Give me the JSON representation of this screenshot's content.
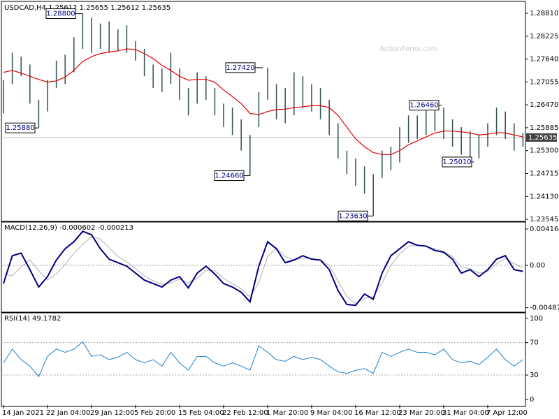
{
  "chart_data": [
    {
      "type": "hilo",
      "title": "USDCAD,H4  1.25612 1.25655 1.25612 1.25635",
      "watermark": "ActionForex.com",
      "categories": [
        "14 Jan 2021",
        null,
        null,
        null,
        null,
        "22 Jan 04:00",
        null,
        null,
        null,
        null,
        "29 Jan 12:00",
        null,
        null,
        null,
        null,
        "5 Feb 20:00",
        null,
        null,
        null,
        null,
        "15 Feb 04:00",
        null,
        null,
        null,
        null,
        "22 Feb 12:00",
        null,
        null,
        null,
        null,
        "1 Mar 20:00",
        null,
        null,
        null,
        null,
        "9 Mar 04:00",
        null,
        null,
        null,
        null,
        "16 Mar 12:00",
        null,
        null,
        null,
        null,
        "23 Mar 20:00",
        null,
        null,
        null,
        null,
        "31 Mar 04:00",
        null,
        null,
        null,
        null,
        "7 Apr 12:00",
        null,
        null,
        null,
        null
      ],
      "color": "#2f4f4f",
      "high": [
        1.271,
        1.278,
        1.277,
        1.275,
        1.266,
        1.271,
        1.276,
        1.2775,
        1.282,
        1.288,
        1.287,
        1.2855,
        1.286,
        1.284,
        1.285,
        1.281,
        1.279,
        1.275,
        1.274,
        1.278,
        1.274,
        1.269,
        1.273,
        1.272,
        1.269,
        1.265,
        1.264,
        1.261,
        1.257,
        1.268,
        1.2742,
        1.27,
        1.269,
        1.273,
        1.272,
        1.27,
        1.269,
        1.266,
        1.26,
        1.253,
        1.251,
        1.249,
        1.247,
        1.253,
        1.254,
        1.259,
        1.262,
        1.262,
        1.264,
        1.2646,
        1.264,
        1.261,
        1.259,
        1.258,
        1.257,
        1.26,
        1.264,
        1.263,
        1.26,
        1.2575
      ],
      "low": [
        1.2625,
        1.27,
        1.272,
        1.265,
        1.2588,
        1.263,
        1.269,
        1.27,
        1.273,
        1.279,
        1.278,
        1.279,
        1.278,
        1.2785,
        1.278,
        1.276,
        1.272,
        1.269,
        1.268,
        1.27,
        1.266,
        1.262,
        1.265,
        1.266,
        1.262,
        1.259,
        1.257,
        1.253,
        1.2466,
        1.259,
        1.266,
        1.261,
        1.26,
        1.262,
        1.264,
        1.263,
        1.261,
        1.257,
        1.251,
        1.247,
        1.244,
        1.242,
        1.2363,
        1.246,
        1.248,
        1.25,
        1.255,
        1.256,
        1.257,
        1.258,
        1.256,
        1.254,
        1.252,
        1.2501,
        1.251,
        1.254,
        1.257,
        1.256,
        1.253,
        1.254
      ],
      "ma": {
        "color": "#e00000",
        "values": [
          1.273,
          1.2735,
          1.2728,
          1.272,
          1.2712,
          1.2705,
          1.2708,
          1.2718,
          1.2735,
          1.2758,
          1.277,
          1.2778,
          1.2782,
          1.2785,
          1.279,
          1.2788,
          1.2778,
          1.2765,
          1.2748,
          1.2735,
          1.272,
          1.271,
          1.2712,
          1.2712,
          1.2705,
          1.2685,
          1.2668,
          1.265,
          1.2625,
          1.2622,
          1.263,
          1.2635,
          1.2636,
          1.264,
          1.2642,
          1.2645,
          1.2645,
          1.264,
          1.262,
          1.259,
          1.256,
          1.254,
          1.2525,
          1.252,
          1.252,
          1.253,
          1.2545,
          1.2555,
          1.2565,
          1.2575,
          1.258,
          1.258,
          1.2578,
          1.2575,
          1.257,
          1.2572,
          1.2576,
          1.2575,
          1.257,
          1.2565
        ]
      },
      "last_price": {
        "value": 1.25635,
        "label": "1.25635"
      },
      "annotations": [
        {
          "value": 1.288,
          "label": "1.28800"
        },
        {
          "value": 1.2742,
          "label": "1.27420"
        },
        {
          "value": 1.2646,
          "label": "1.26460"
        },
        {
          "value": 1.2588,
          "label": "1.25880"
        },
        {
          "value": 1.2501,
          "label": "1.25010"
        },
        {
          "value": 1.2466,
          "label": "1.24660"
        },
        {
          "value": 1.2363,
          "label": "1.23630"
        }
      ],
      "ylim": [
        1.2351,
        1.2906
      ],
      "yticks": [
        {
          "value": 1.2881,
          "label": "1.28810"
        },
        1.28225,
        {
          "value": 1.2764,
          "label": "1.27640"
        },
        1.27055,
        {
          "value": 1.2647,
          "label": "1.26470"
        },
        1.25885,
        {
          "value": 1.253,
          "label": "1.25300"
        },
        1.24715,
        {
          "value": 1.2413,
          "label": "1.24130"
        },
        1.23545
      ]
    },
    {
      "type": "macd",
      "title": "MACD(12,26,9) -0.000602 -0.000213",
      "macd": {
        "color": "#000080",
        "values": [
          -0.0021,
          0.0011,
          0.0014,
          -0.0005,
          -0.0025,
          -0.0013,
          0.0006,
          0.0019,
          0.0027,
          0.0039,
          0.0035,
          0.0019,
          0.0007,
          0.0003,
          -0.0001,
          -0.0009,
          -0.0017,
          -0.0021,
          -0.0025,
          -0.0017,
          -0.0013,
          -0.0026,
          -0.0009,
          -0.0001,
          -0.001,
          -0.0021,
          -0.0025,
          -0.0031,
          -0.0042,
          -0.0001,
          0.0027,
          0.0019,
          0.0003,
          0.0006,
          0.0011,
          0.0007,
          0.0006,
          -0.0005,
          -0.0029,
          -0.0045,
          -0.0046,
          -0.0033,
          -0.0039,
          -0.0009,
          0.0011,
          0.0019,
          0.0027,
          0.0023,
          0.0022,
          0.0017,
          0.0015,
          0.0007,
          -0.0009,
          -0.0005,
          -0.0013,
          -0.0005,
          0.0007,
          0.0011,
          -0.0005,
          -0.0007
        ]
      },
      "signal": {
        "color": "#b0b0b0",
        "values": [
          -0.001,
          -0.0012,
          -0.0002,
          0.0006,
          -0.0006,
          -0.0017,
          -0.001,
          0.0001,
          0.0014,
          0.0024,
          0.0033,
          0.003,
          0.002,
          0.001,
          0.0004,
          -0.0004,
          -0.0012,
          -0.0018,
          -0.0022,
          -0.002,
          -0.0016,
          -0.002,
          -0.0015,
          -0.0006,
          -0.0006,
          -0.0015,
          -0.0021,
          -0.0027,
          -0.0036,
          -0.002,
          0.001,
          0.002,
          0.001,
          0.0006,
          0.0008,
          0.0008,
          0.0006,
          0.0,
          -0.0018,
          -0.0036,
          -0.0044,
          -0.0038,
          -0.0036,
          -0.002,
          0.0,
          0.0013,
          0.0022,
          0.0023,
          0.0022,
          0.0019,
          0.0016,
          0.001,
          -0.0002,
          -0.0004,
          -0.0009,
          -0.0007,
          0.0002,
          0.0008,
          0.0002,
          -0.0003
        ]
      },
      "ylim": [
        -0.0053,
        0.0048
      ],
      "yticks": [
        0.00416,
        {
          "value": 0,
          "label": "0.00"
        },
        -0.004871
      ]
    },
    {
      "type": "rsi",
      "title": "RSI(14) 49.1782",
      "color": "#1e7fd0",
      "values": [
        45,
        62,
        49,
        41,
        28,
        53,
        62,
        58,
        62,
        71,
        53,
        55,
        49,
        52,
        58,
        49,
        45,
        49,
        41,
        58,
        45,
        36,
        53,
        53,
        45,
        41,
        45,
        41,
        36,
        66,
        58,
        49,
        47,
        53,
        49,
        52,
        49,
        41,
        34,
        32,
        36,
        38,
        32,
        58,
        53,
        58,
        62,
        58,
        58,
        55,
        62,
        49,
        45,
        47,
        43,
        52,
        62,
        49,
        41,
        49
      ],
      "levels": [
        70,
        30
      ],
      "ylim": [
        -7,
        105
      ],
      "yticks": [
        100,
        70,
        30,
        0
      ]
    }
  ]
}
